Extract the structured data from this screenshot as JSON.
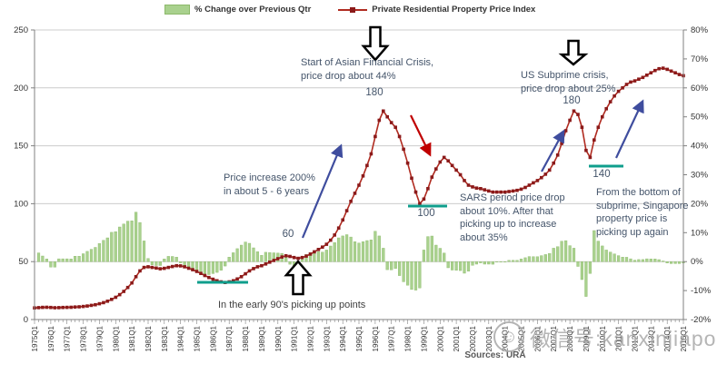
{
  "legend": {
    "pct_label": "% Change over Previous Qtr",
    "index_label": "Private Residential Property Price Index"
  },
  "annotations": {
    "asian_crisis": "Start of Asian Financial Crisis,\nprice drop about 44%",
    "subprime": "US Subprime crisis,\nprice drop about 25%",
    "price_increase": "Price increase 200%\nin about 5 - 6 years",
    "early_90s": "In the early 90's picking up points",
    "sars": "SARS period price drop\nabout 10%. After that\npicking up to increase\nabout 35%",
    "bottom_subprime": "From the bottom of\nsubprime, Singapore\nproperty price is\npicking up again"
  },
  "point_labels": {
    "start_1991": "60",
    "peak_1996": "180",
    "trough_1998": "100",
    "peak_2008": "180",
    "trough_2009": "140"
  },
  "sources": "Sources: URA",
  "watermark": "微信号:kanxinjiapo",
  "colors": {
    "bar": "#a9d18e",
    "bar_edge": "#8cb96a",
    "line": "#b02b20",
    "marker": "#8b1a1a",
    "teal_underline": "#0f9e8c",
    "arrow_blue": "#3f4d9e",
    "arrow_red": "#c00000",
    "annotation_text": "#44546a",
    "grid": "#cccccc",
    "axis": "#808080"
  },
  "chart_data": {
    "type": "combo",
    "title": "",
    "x_start": "1975Q1",
    "x_end": "2015Q1",
    "x_tick_labels": [
      "1975Q1",
      "1976Q1",
      "1977Q1",
      "1978Q1",
      "1979Q1",
      "1980Q1",
      "1981Q1",
      "1982Q1",
      "1983Q1",
      "1984Q1",
      "1985Q1",
      "1986Q1",
      "1987Q1",
      "1988Q1",
      "1989Q1",
      "1990Q1",
      "1991Q1",
      "1992Q1",
      "1993Q1",
      "1994Q1",
      "1995Q1",
      "1996Q1",
      "1997Q1",
      "1998Q1",
      "1999Q1",
      "2000Q1",
      "2001Q1",
      "2002Q1",
      "2003Q1",
      "2004Q1",
      "2005Q1",
      "2006Q1",
      "2007Q1",
      "2008Q1",
      "2009Q1",
      "2010Q1",
      "2011Q1",
      "2012Q1",
      "2013Q1",
      "2014Q1",
      "2015Q1"
    ],
    "left_axis": {
      "ticks": [
        0,
        50,
        100,
        150,
        200,
        250
      ],
      "range": [
        0,
        250
      ]
    },
    "right_axis": {
      "ticks": [
        "80%",
        "70%",
        "60%",
        "50%",
        "40%",
        "30%",
        "20%",
        "10%",
        "0%",
        "-10%",
        "-20%"
      ],
      "range_pct": [
        -20,
        80
      ]
    },
    "legend_position": "top",
    "grid": "horizontal",
    "series": [
      {
        "name": "Private Residential Property Price Index",
        "type": "line",
        "quarterly": true,
        "values": [
          10.0,
          10.3,
          10.5,
          10.6,
          10.4,
          10.2,
          10.3,
          10.4,
          10.5,
          10.6,
          10.8,
          11.0,
          11.3,
          11.7,
          12.2,
          12.8,
          13.6,
          14.6,
          15.8,
          17.4,
          19.2,
          21.5,
          24.3,
          27.7,
          31.6,
          37.0,
          42.0,
          45.0,
          45.5,
          45.0,
          44.4,
          43.8,
          44.2,
          45.0,
          45.8,
          46.5,
          46.3,
          45.5,
          44.3,
          43.0,
          41.5,
          39.8,
          38.0,
          36.3,
          34.8,
          33.5,
          32.5,
          32.0,
          32.5,
          33.5,
          35.0,
          37.0,
          39.5,
          42.0,
          44.0,
          45.5,
          46.5,
          48.0,
          49.5,
          51.0,
          52.5,
          54.0,
          55.0,
          54.5,
          53.5,
          52.8,
          53.5,
          54.8,
          56.5,
          58.5,
          60.5,
          62.5,
          65.0,
          68.5,
          73.0,
          79.0,
          86.0,
          94.0,
          102.0,
          109.0,
          116.0,
          124.0,
          133.0,
          143.0,
          158.0,
          172.0,
          180.0,
          175.0,
          170.0,
          166.0,
          158.0,
          147.0,
          135.0,
          122.0,
          110.0,
          100.0,
          104.0,
          113.0,
          123.0,
          130.0,
          136.0,
          140.0,
          137.0,
          133.0,
          129.0,
          125.0,
          120.0,
          116.0,
          114.5,
          113.5,
          113.0,
          112.0,
          111.0,
          110.0,
          110.0,
          110.0,
          110.0,
          110.5,
          111.0,
          111.5,
          112.5,
          114.0,
          116.0,
          118.0,
          120.0,
          122.5,
          125.5,
          129.0,
          135.0,
          142.0,
          152.0,
          163.0,
          172.0,
          180.0,
          177.0,
          166.0,
          146.0,
          140.0,
          155.0,
          166.0,
          175.0,
          182.0,
          188.0,
          193.0,
          197.0,
          200.0,
          203.0,
          205.0,
          206.0,
          207.5,
          209.0,
          211.0,
          213.0,
          215.0,
          216.5,
          217.0,
          216.0,
          214.5,
          213.0,
          211.5,
          210.5
        ]
      },
      {
        "name": "% Change over Previous Qtr",
        "type": "bar",
        "axis": "right",
        "derived_from": "quarter-over-quarter % change of the index series"
      }
    ]
  }
}
